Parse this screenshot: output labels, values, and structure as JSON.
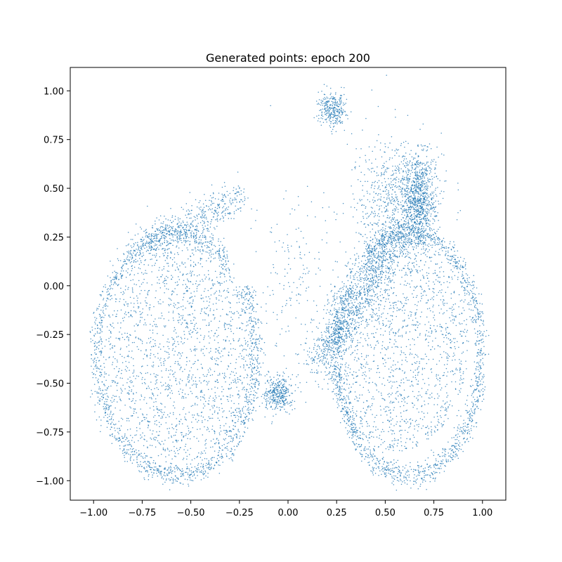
{
  "chart_data": {
    "type": "scatter",
    "title": "Generated points: epoch 200",
    "xlabel": "",
    "ylabel": "",
    "xlim": [
      -1.12,
      1.12
    ],
    "ylim": [
      -1.1,
      1.12
    ],
    "x_ticks": [
      -1.0,
      -0.75,
      -0.5,
      -0.25,
      0.0,
      0.25,
      0.5,
      0.75,
      1.0
    ],
    "x_tick_labels": [
      "−1.00",
      "−0.75",
      "−0.50",
      "−0.25",
      "0.00",
      "0.25",
      "0.50",
      "0.75",
      "1.00"
    ],
    "y_ticks": [
      1.0,
      0.75,
      0.5,
      0.25,
      0.0,
      -0.25,
      -0.5,
      -0.75,
      -1.0
    ],
    "y_tick_labels": [
      "1.00",
      "0.75",
      "0.50",
      "0.25",
      "0.00",
      "−0.25",
      "−0.50",
      "−0.75",
      "−1.00"
    ],
    "grid": false,
    "series": [
      {
        "color": "#1f77b4",
        "clusters": [
          {
            "region": "left lobe boundary ring",
            "center": [
              -0.57,
              -0.35
            ],
            "radius_x": 0.41,
            "radius_y": 0.62,
            "points": 1700
          },
          {
            "region": "left lobe interior",
            "center": [
              -0.55,
              -0.35
            ],
            "radius_x": 0.38,
            "radius_y": 0.55,
            "points": 1600
          },
          {
            "region": "left upper arm",
            "from": [
              -0.78,
              0.18
            ],
            "to": [
              -0.25,
              0.45
            ],
            "points": 500
          },
          {
            "region": "right lobe boundary ring",
            "center": [
              0.62,
              -0.35
            ],
            "radius_x": 0.37,
            "radius_y": 0.62,
            "points": 1700
          },
          {
            "region": "right lobe interior",
            "center": [
              0.55,
              -0.3
            ],
            "radius_x": 0.38,
            "radius_y": 0.55,
            "points": 1600
          },
          {
            "region": "right upper dense blob",
            "center": [
              0.67,
              0.45
            ],
            "radius_x": 0.08,
            "radius_y": 0.2,
            "points": 900
          },
          {
            "region": "right upper spread",
            "center": [
              0.55,
              0.4
            ],
            "radius_x": 0.17,
            "radius_y": 0.3,
            "points": 700
          },
          {
            "region": "top small cluster",
            "center": [
              0.23,
              0.9
            ],
            "radius_x": 0.06,
            "radius_y": 0.07,
            "points": 300
          },
          {
            "region": "center bottom cluster",
            "center": [
              -0.05,
              -0.55
            ],
            "radius_x": 0.06,
            "radius_y": 0.08,
            "points": 350
          },
          {
            "region": "middle diagonal band",
            "from": [
              0.15,
              -0.4
            ],
            "to": [
              0.55,
              0.25
            ],
            "points": 900
          },
          {
            "region": "center sparse",
            "center": [
              0.05,
              0.0
            ],
            "radius_x": 0.2,
            "radius_y": 0.4,
            "points": 180
          }
        ]
      }
    ]
  }
}
